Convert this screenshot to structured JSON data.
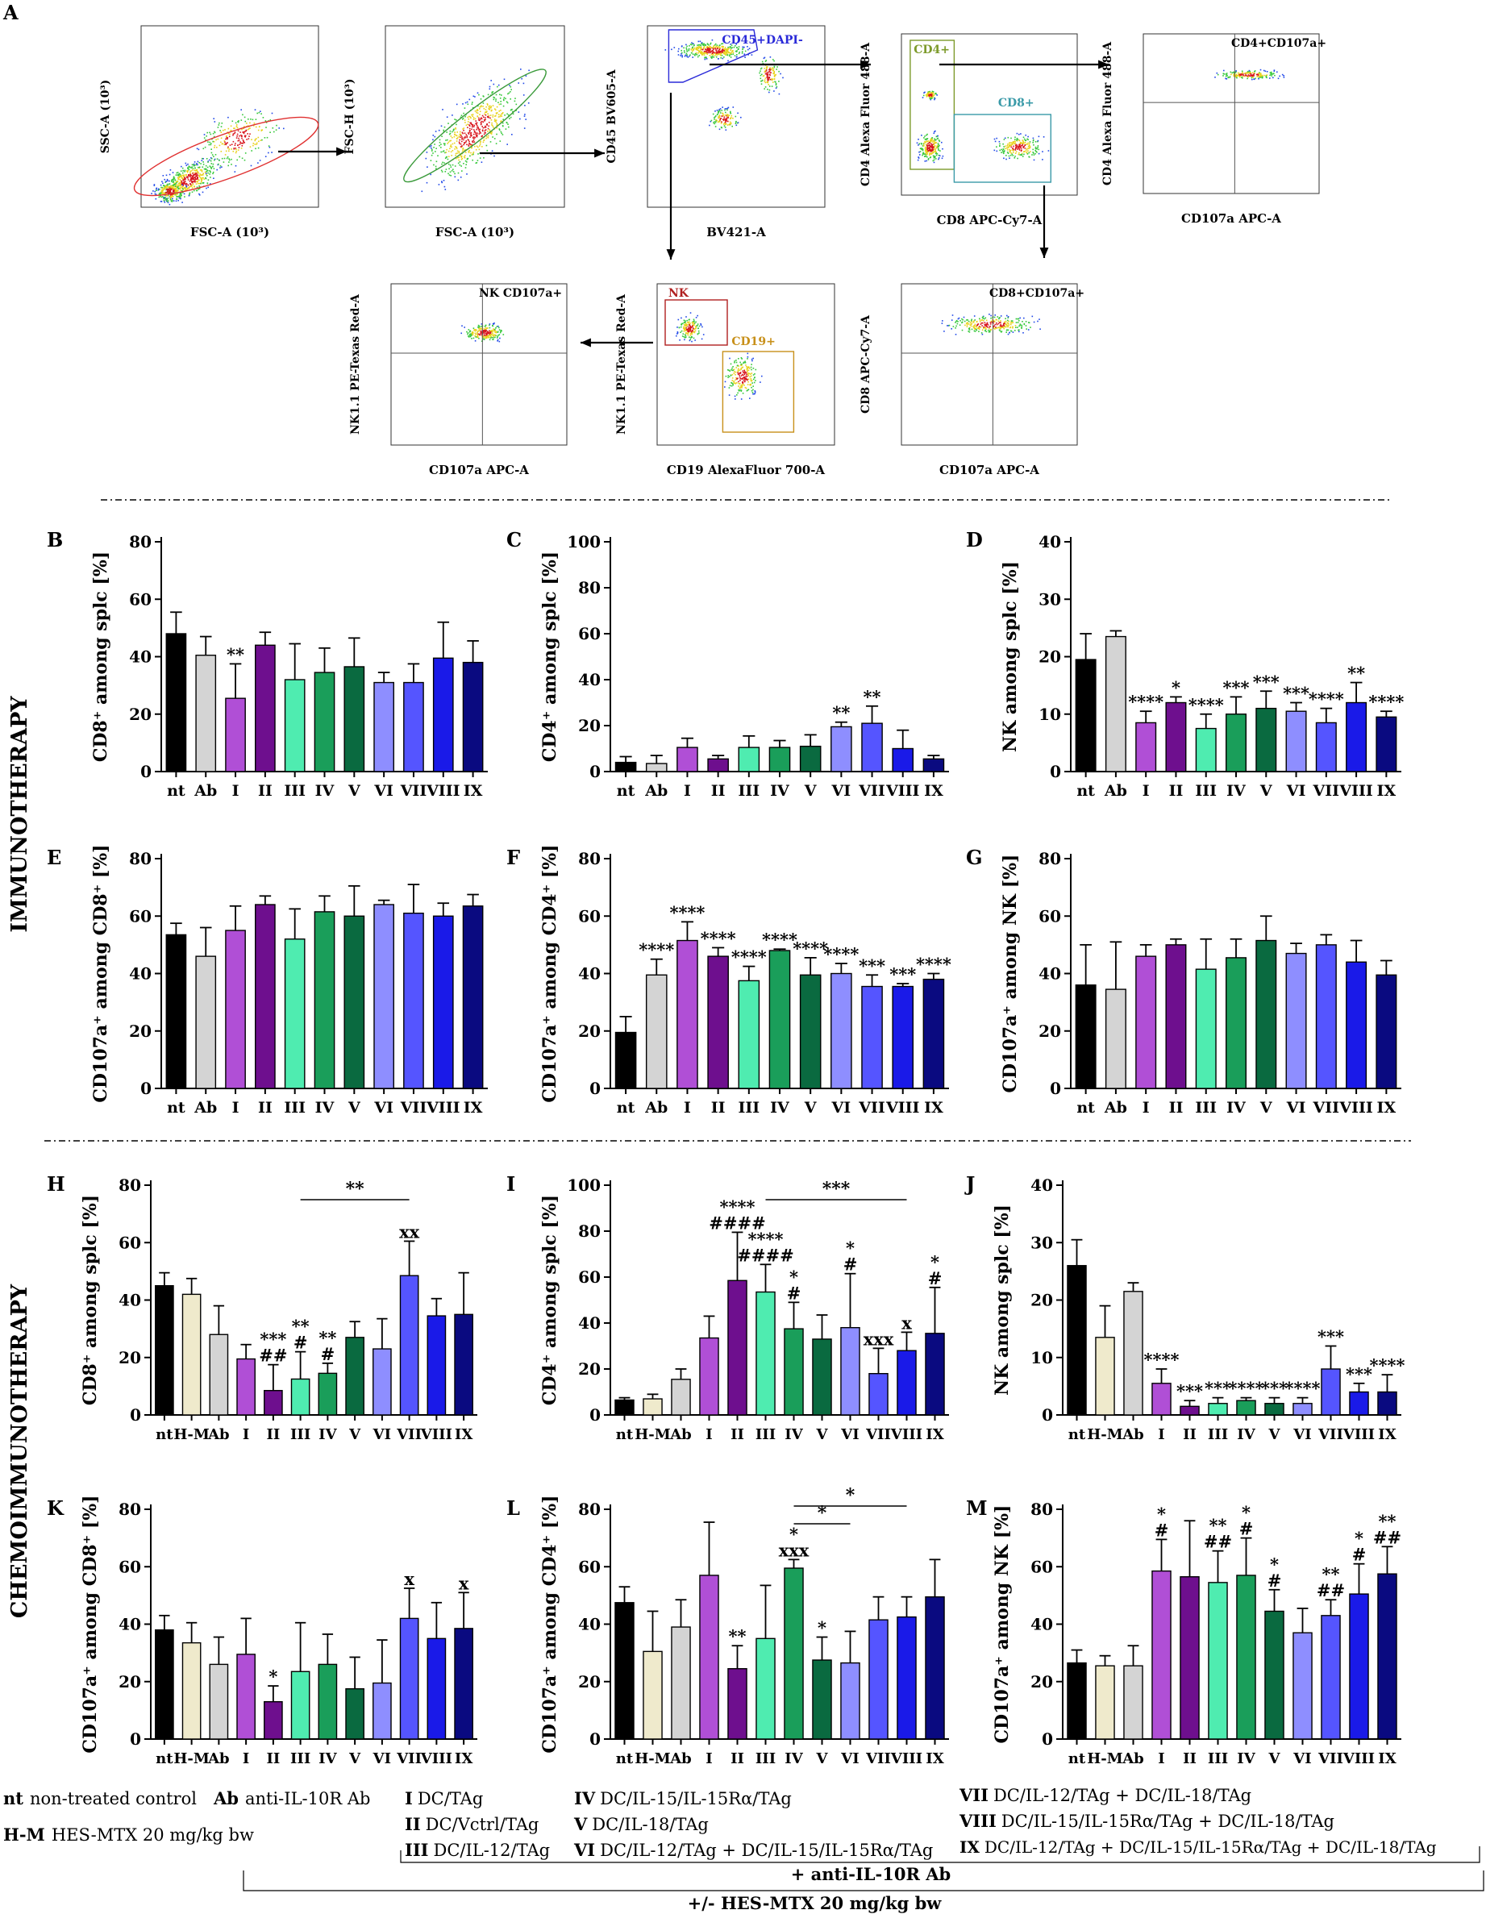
{
  "flow": {
    "panel_letter": "A",
    "plots": [
      {
        "id": "p1",
        "ylabel": "SSC-A (10³)",
        "xlabel": "FSC-A (10³)",
        "gates": []
      },
      {
        "id": "p2",
        "ylabel": "FSC-H (10³)",
        "xlabel": "FSC-A (10³)",
        "gates": []
      },
      {
        "id": "p3",
        "ylabel": "CD45 BV605-A",
        "xlabel": "BV421-A",
        "gates": [
          {
            "label": "CD45+DAPI-",
            "color": "#2a2ad8"
          }
        ]
      },
      {
        "id": "p4",
        "ylabel": "CD4 Alexa Fluor 488-A",
        "xlabel": "CD8 APC-Cy7-A",
        "gates": [
          {
            "label": "CD4+",
            "color": "#7c9a2a"
          },
          {
            "label": "CD8+",
            "color": "#3a9aa8"
          }
        ]
      },
      {
        "id": "p5",
        "ylabel": "CD4 Alexa Fluor 488-A",
        "xlabel": "CD107a APC-A",
        "gates": [
          {
            "label": "CD4+CD107a+",
            "color": "#000000"
          }
        ]
      },
      {
        "id": "p6",
        "ylabel": "NK1.1 PE-Texas Red-A",
        "xlabel": "CD107a APC-A",
        "gates": [
          {
            "label": "NK CD107a+",
            "color": "#000000"
          }
        ]
      },
      {
        "id": "p7",
        "ylabel": "NK1.1 PE-Texas Red-A",
        "xlabel": "CD19 AlexaFluor 700-A",
        "gates": [
          {
            "label": "NK",
            "color": "#b02020"
          },
          {
            "label": "CD19+",
            "color": "#c8901a"
          }
        ]
      },
      {
        "id": "p8",
        "ylabel": "CD8 APC-Cy7-A",
        "xlabel": "CD107a APC-A",
        "gates": [
          {
            "label": "CD8+CD107a+",
            "color": "#000000"
          }
        ]
      }
    ]
  },
  "sections": {
    "immuno": "IMMUNOTHERAPY",
    "chemo": "CHEMOIMMUNOTHERAPY"
  },
  "chart_data": [
    {
      "id": "B",
      "type": "bar",
      "ylabel": "CD8⁺ among splc [%]",
      "ylim": [
        0,
        80
      ],
      "yticks": [
        0,
        20,
        40,
        60,
        80
      ],
      "categories": [
        "nt",
        "Ab",
        "I",
        "II",
        "III",
        "IV",
        "V",
        "VI",
        "VII",
        "VIII",
        "IX"
      ],
      "values": [
        48,
        40.5,
        25.5,
        44,
        32,
        34.5,
        36.5,
        31,
        31,
        39.5,
        38
      ],
      "errors": [
        7.5,
        6.5,
        12,
        4.5,
        12.5,
        8.5,
        10,
        3.5,
        6.5,
        12.5,
        7.5
      ],
      "annotations": [
        "",
        "",
        "**",
        "",
        "",
        "",
        "",
        "",
        "",
        "",
        ""
      ]
    },
    {
      "id": "C",
      "type": "bar",
      "ylabel": "CD4⁺ among splc [%]",
      "ylim": [
        0,
        100
      ],
      "yticks": [
        0,
        20,
        40,
        60,
        80,
        100
      ],
      "categories": [
        "nt",
        "Ab",
        "I",
        "II",
        "III",
        "IV",
        "V",
        "VI",
        "VII",
        "VIII",
        "IX"
      ],
      "values": [
        4,
        3.5,
        10.5,
        5.5,
        10.5,
        10.5,
        11,
        19.5,
        21,
        10,
        5.5
      ],
      "errors": [
        2.5,
        3.5,
        4,
        1.5,
        5,
        3,
        5,
        2,
        7.5,
        8,
        1.5
      ],
      "annotations": [
        "",
        "",
        "",
        "",
        "",
        "",
        "",
        "**",
        "**",
        "",
        ""
      ]
    },
    {
      "id": "D",
      "type": "bar",
      "ylabel": "NK among splc [%]",
      "ylim": [
        0,
        40
      ],
      "yticks": [
        0,
        10,
        20,
        30,
        40
      ],
      "categories": [
        "nt",
        "Ab",
        "I",
        "II",
        "III",
        "IV",
        "V",
        "VI",
        "VII",
        "VIII",
        "IX"
      ],
      "values": [
        19.5,
        23.5,
        8.5,
        12,
        7.5,
        10,
        11,
        10.5,
        8.5,
        12,
        9.5
      ],
      "errors": [
        4.5,
        1,
        2,
        1,
        2.5,
        3,
        3,
        1.5,
        2.5,
        3.5,
        1
      ],
      "annotations": [
        "",
        "",
        "****",
        "*",
        "****",
        "***",
        "***",
        "***",
        "****",
        "**",
        "****"
      ]
    },
    {
      "id": "E",
      "type": "bar",
      "ylabel": "CD107a⁺ among CD8⁺ [%]",
      "ylim": [
        0,
        80
      ],
      "yticks": [
        0,
        20,
        40,
        60,
        80
      ],
      "categories": [
        "nt",
        "Ab",
        "I",
        "II",
        "III",
        "IV",
        "V",
        "VI",
        "VII",
        "VIII",
        "IX"
      ],
      "values": [
        53.5,
        46,
        55,
        64,
        52,
        61.5,
        60,
        64,
        61,
        60,
        63.5
      ],
      "errors": [
        4,
        10,
        8.5,
        3,
        10.5,
        5.5,
        10.5,
        1.5,
        10,
        4.5,
        4
      ],
      "annotations": [
        "",
        "",
        "",
        "",
        "",
        "",
        "",
        "",
        "",
        "",
        ""
      ]
    },
    {
      "id": "F",
      "type": "bar",
      "ylabel": "CD107a⁺ among CD4⁺ [%]",
      "ylim": [
        0,
        80
      ],
      "yticks": [
        0,
        20,
        40,
        60,
        80
      ],
      "categories": [
        "nt",
        "Ab",
        "I",
        "II",
        "III",
        "IV",
        "V",
        "VI",
        "VII",
        "VIII",
        "IX"
      ],
      "values": [
        19.5,
        39.5,
        51.5,
        46,
        37.5,
        48,
        39.5,
        40,
        35.5,
        35.5,
        38
      ],
      "errors": [
        5.5,
        5.5,
        6.5,
        3,
        5,
        0.5,
        6,
        3.5,
        4,
        1,
        2
      ],
      "annotations": [
        "",
        "****",
        "****",
        "****",
        "****",
        "****",
        "****",
        "****",
        "***",
        "***",
        "****"
      ]
    },
    {
      "id": "G",
      "type": "bar",
      "ylabel": "CD107a⁺ among NK [%]",
      "ylim": [
        0,
        80
      ],
      "yticks": [
        0,
        20,
        40,
        60,
        80
      ],
      "categories": [
        "nt",
        "Ab",
        "I",
        "II",
        "III",
        "IV",
        "V",
        "VI",
        "VII",
        "VIII",
        "IX"
      ],
      "values": [
        36,
        34.5,
        46,
        50,
        41.5,
        45.5,
        51.5,
        47,
        50,
        44,
        39.5
      ],
      "errors": [
        14,
        16.5,
        4,
        2,
        10.5,
        6.5,
        8.5,
        3.5,
        3.5,
        7.5,
        5
      ],
      "annotations": [
        "",
        "",
        "",
        "",
        "",
        "",
        "",
        "",
        "",
        "",
        ""
      ]
    },
    {
      "id": "H",
      "type": "bar",
      "ylabel": "CD8⁺ among splc [%]",
      "ylim": [
        0,
        80
      ],
      "yticks": [
        0,
        20,
        40,
        60,
        80
      ],
      "categories": [
        "nt",
        "H-M",
        "Ab",
        "I",
        "II",
        "III",
        "IV",
        "V",
        "VI",
        "VII",
        "VIII",
        "IX"
      ],
      "values": [
        45,
        42,
        28,
        19.5,
        8.5,
        12.5,
        14.5,
        27,
        23,
        48.5,
        34.5,
        35
      ],
      "errors": [
        4.5,
        5.5,
        10,
        5,
        9,
        9.5,
        3.5,
        5.5,
        10.5,
        12,
        6,
        14.5
      ],
      "annotations": [
        "",
        "",
        "",
        "",
        "***\n##",
        "**\n#",
        "**\n#",
        "",
        "",
        "xx",
        "",
        ""
      ],
      "bracket": {
        "from": "III",
        "to": "VII",
        "label": "**"
      }
    },
    {
      "id": "I",
      "type": "bar",
      "ylabel": "CD4⁺ among splc [%]",
      "ylim": [
        0,
        100
      ],
      "yticks": [
        0,
        20,
        40,
        60,
        80,
        100
      ],
      "categories": [
        "nt",
        "H-M",
        "Ab",
        "I",
        "II",
        "III",
        "IV",
        "V",
        "VI",
        "VII",
        "VIII",
        "IX"
      ],
      "values": [
        6.5,
        7,
        15.5,
        33.5,
        58.5,
        53.5,
        37.5,
        33,
        38,
        18,
        28,
        35.5
      ],
      "errors": [
        1,
        2,
        4.5,
        9.5,
        21,
        12,
        11.5,
        10.5,
        23.5,
        11,
        8,
        20
      ],
      "annotations": [
        "",
        "",
        "",
        "",
        "****\n####",
        "****\n####",
        "*\n#",
        "",
        "*\n#",
        "xxx",
        "x",
        "*\n#"
      ],
      "bracket": {
        "from": "III",
        "to": "VIII",
        "label": "***"
      }
    },
    {
      "id": "J",
      "type": "bar",
      "ylabel": "NK among splc [%]",
      "ylim": [
        0,
        40
      ],
      "yticks": [
        0,
        10,
        20,
        30,
        40
      ],
      "categories": [
        "nt",
        "H-M",
        "Ab",
        "I",
        "II",
        "III",
        "IV",
        "V",
        "VI",
        "VII",
        "VIII",
        "IX"
      ],
      "values": [
        26,
        13.5,
        21.5,
        5.5,
        1.5,
        2,
        2.5,
        2,
        2,
        8,
        4,
        4
      ],
      "errors": [
        4.5,
        5.5,
        1.5,
        2.5,
        1,
        1,
        0.5,
        1,
        1,
        4,
        1.5,
        3
      ],
      "annotations": [
        "",
        "",
        "",
        "****",
        "***",
        "***",
        "****",
        "***",
        "****",
        "***",
        "***",
        "****"
      ]
    },
    {
      "id": "K",
      "type": "bar",
      "ylabel": "CD107a⁺ among CD8⁺ [%]",
      "ylim": [
        0,
        80
      ],
      "yticks": [
        0,
        20,
        40,
        60,
        80
      ],
      "categories": [
        "nt",
        "H-M",
        "Ab",
        "I",
        "II",
        "III",
        "IV",
        "V",
        "VI",
        "VII",
        "VIII",
        "IX"
      ],
      "values": [
        38,
        33.5,
        26,
        29.5,
        13,
        23.5,
        26,
        17.5,
        19.5,
        42,
        35,
        38.5
      ],
      "errors": [
        5,
        7,
        9.5,
        12.5,
        5.5,
        17,
        10.5,
        11,
        15,
        10.5,
        12.5,
        12.5
      ],
      "annotations": [
        "",
        "",
        "",
        "",
        "*",
        "",
        "",
        "",
        "",
        "x",
        "",
        "x"
      ]
    },
    {
      "id": "L",
      "type": "bar",
      "ylabel": "CD107a⁺ among CD4⁺ [%]",
      "ylim": [
        0,
        80
      ],
      "yticks": [
        0,
        20,
        40,
        60,
        80
      ],
      "categories": [
        "nt",
        "H-M",
        "Ab",
        "I",
        "II",
        "III",
        "IV",
        "V",
        "VI",
        "VII",
        "VIII",
        "IX"
      ],
      "values": [
        47.5,
        30.5,
        39,
        57,
        24.5,
        35,
        59.5,
        27.5,
        26.5,
        41.5,
        42.5,
        49.5
      ],
      "errors": [
        5.5,
        14,
        9.5,
        18.5,
        8,
        18.5,
        3,
        8,
        11,
        8,
        7,
        13
      ],
      "annotations": [
        "",
        "",
        "",
        "",
        "**",
        "",
        "*\nxxx",
        "*",
        "",
        "",
        "",
        ""
      ],
      "brackets": [
        {
          "from": "IV",
          "to": "VI",
          "label": "*"
        },
        {
          "from": "IV",
          "to": "VIII",
          "label": "*"
        }
      ]
    },
    {
      "id": "M",
      "type": "bar",
      "ylabel": "CD107a⁺ among NK [%]",
      "ylim": [
        0,
        80
      ],
      "yticks": [
        0,
        20,
        40,
        60,
        80
      ],
      "categories": [
        "nt",
        "H-M",
        "Ab",
        "I",
        "II",
        "III",
        "IV",
        "V",
        "VI",
        "VII",
        "VIII",
        "IX"
      ],
      "values": [
        26.5,
        25.5,
        25.5,
        58.5,
        56.5,
        54.5,
        57,
        44.5,
        37,
        43,
        50.5,
        57.5
      ],
      "errors": [
        4.5,
        3.5,
        7,
        11,
        19.5,
        11,
        13,
        7.5,
        8.5,
        5.5,
        10.5,
        9.5
      ],
      "annotations": [
        "",
        "",
        "",
        "*\n#",
        "",
        "**\n##",
        "*\n#",
        "*\n#",
        "",
        "**\n##",
        "*\n#",
        "**\n##"
      ]
    }
  ],
  "colors": {
    "immuno": [
      "#000000",
      "#d4d4d4",
      "#b04fd6",
      "#6e0f8e",
      "#4fecb0",
      "#1a9e5a",
      "#0a6a40",
      "#8e8eff",
      "#5555ff",
      "#1a1ae8",
      "#0a0a80"
    ],
    "chemo": [
      "#000000",
      "#efeacc",
      "#d4d4d4",
      "#b04fd6",
      "#6e0f8e",
      "#4fecb0",
      "#1a9e5a",
      "#0a6a40",
      "#8e8eff",
      "#5555ff",
      "#1a1ae8",
      "#0a0a80"
    ]
  },
  "legend": {
    "nt_abbr": "nt",
    "nt_text": "non-treated control",
    "ab_abbr": "Ab",
    "ab_text": "anti-IL-10R  Ab",
    "hm_abbr": "H-M",
    "hm_text": "HES-MTX 20 mg/kg bw",
    "g1_num": "I",
    "g1": "DC/TAg",
    "g2_num": "II",
    "g2": "DC/Vctrl/TAg",
    "g3_num": "III",
    "g3": "DC/IL-12/TAg",
    "g4_num": "IV",
    "g4": "DC/IL-15/IL-15Rα/TAg",
    "g5_num": "V",
    "g5": "DC/IL-18/TAg",
    "g6_num": "VI",
    "g6": "DC/IL-12/TAg + DC/IL-15/IL-15Rα/TAg",
    "g7_num": "VII",
    "g7": "DC/IL-12/TAg + DC/IL-18/TAg",
    "g8_num": "VIII",
    "g8": "DC/IL-15/IL-15Rα/TAg + DC/IL-18/TAg",
    "g9_num": "IX",
    "g9": "DC/IL-12/TAg + DC/IL-15/IL-15Rα/TAg + DC/IL-18/TAg",
    "plus_ab": "+ anti-IL-10R Ab",
    "plus_hm": "+/- HES-MTX 20 mg/kg bw"
  }
}
